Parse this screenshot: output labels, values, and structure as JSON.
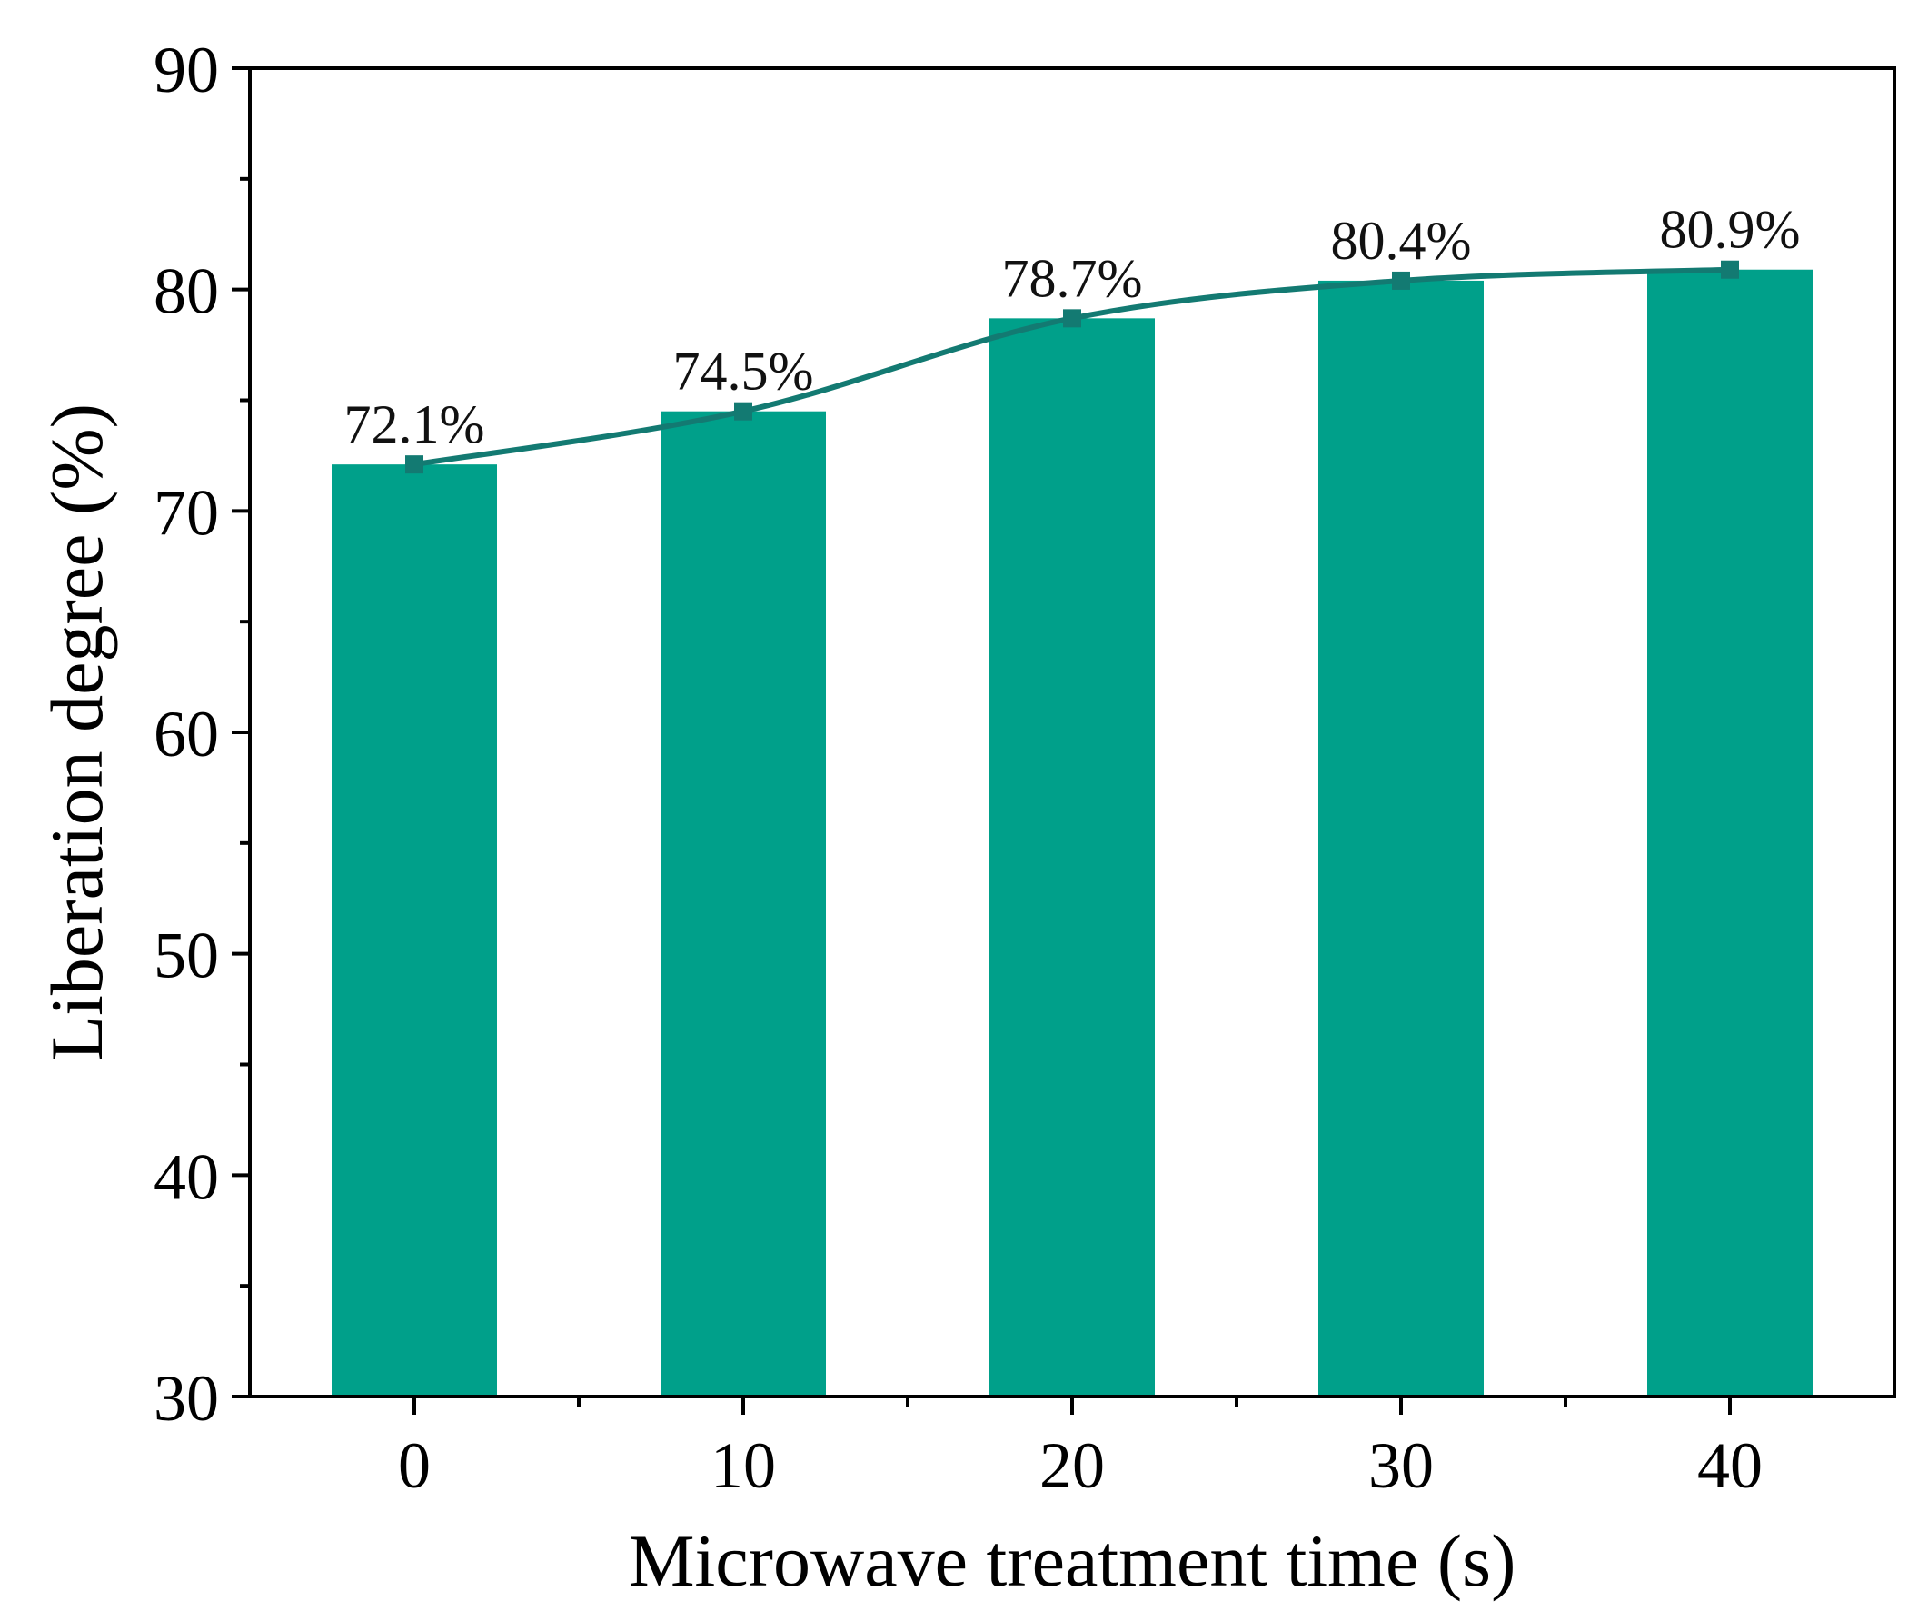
{
  "chart_data": {
    "type": "bar",
    "categories": [
      "0",
      "10",
      "20",
      "30",
      "40"
    ],
    "x": [
      0,
      10,
      20,
      30,
      40
    ],
    "values": [
      72.1,
      74.5,
      78.7,
      80.4,
      80.9
    ],
    "data_labels": [
      "72.1%",
      "74.5%",
      "78.7%",
      "80.4%",
      "80.9%"
    ],
    "overlay": {
      "type": "line",
      "smooth": true,
      "marker": "square",
      "values": [
        72.1,
        74.5,
        78.7,
        80.4,
        80.9
      ]
    },
    "title": "",
    "xlabel": "Microwave treatment time (s)",
    "ylabel": "Liberation degree (%)",
    "xlim": [
      -5,
      45
    ],
    "ylim": [
      30,
      90
    ],
    "yticks": [
      30,
      40,
      50,
      60,
      70,
      80,
      90
    ],
    "y_minor_step": 5,
    "x_minor_step": 5,
    "grid": false,
    "bar_color": "#00A08A",
    "line_color": "#137A72"
  }
}
